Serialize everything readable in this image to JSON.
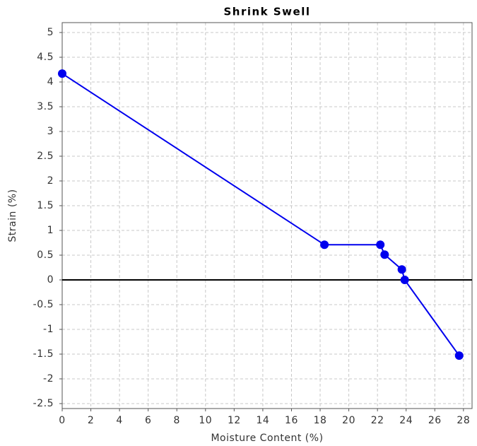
{
  "chart_data": {
    "type": "line",
    "title": "Shrink Swell",
    "x_label": "Moisture Content (%)",
    "y_label": "Strain (%)",
    "series": [
      {
        "name": "Strain",
        "color": "#0000ee",
        "x": [
          0,
          18.3,
          22.2,
          22.5,
          23.7,
          23.9,
          27.7
        ],
        "values": [
          4.17,
          0.71,
          0.71,
          0.51,
          0.21,
          0,
          -1.53
        ]
      }
    ],
    "xlim": [
      0,
      28.6
    ],
    "xticks": [
      0,
      2,
      4,
      6,
      8,
      10,
      12,
      14,
      16,
      18,
      20,
      22,
      24,
      26,
      28
    ],
    "ylim": [
      -2.6,
      5.2
    ],
    "yticks": [
      -2.5,
      -2,
      -1.5,
      -1,
      -0.5,
      0,
      0.5,
      1,
      1.5,
      2,
      2.5,
      3,
      3.5,
      4,
      4.5,
      5
    ],
    "grid": true,
    "zero_line": true,
    "legend": false
  }
}
